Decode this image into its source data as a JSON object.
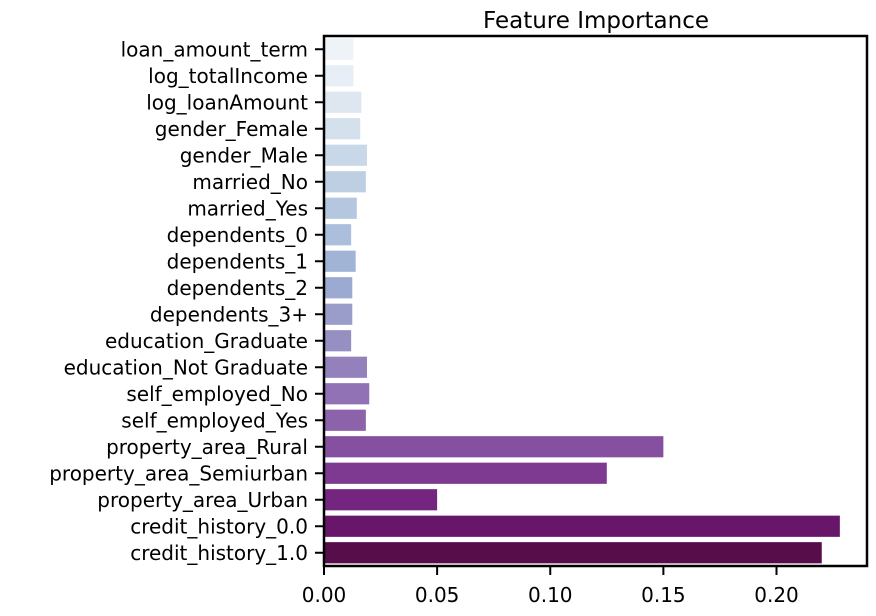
{
  "chart_data": {
    "type": "bar",
    "orientation": "horizontal",
    "title": "Feature Importance",
    "xlabel": "",
    "ylabel": "",
    "xlim": [
      0,
      0.24
    ],
    "x_ticks": [
      "0.00",
      "0.05",
      "0.10",
      "0.15",
      "0.20"
    ],
    "x_tick_values": [
      0,
      0.05,
      0.1,
      0.15,
      0.2
    ],
    "grid": false,
    "legend": "none",
    "palette": "BuPu",
    "categories": [
      "loan_amount_term",
      "log_totalIncome",
      "log_loanAmount",
      "gender_Female",
      "gender_Male",
      "married_No",
      "married_Yes",
      "dependents_0",
      "dependents_1",
      "dependents_2",
      "dependents_3+",
      "education_Graduate",
      "education_Not Graduate",
      "self_employed_No",
      "self_employed_Yes",
      "property_area_Rural",
      "property_area_Semiurban",
      "property_area_Urban",
      "credit_history_0.0",
      "credit_history_1.0"
    ],
    "values": [
      0.013,
      0.013,
      0.0165,
      0.016,
      0.019,
      0.0185,
      0.0145,
      0.012,
      0.014,
      0.0125,
      0.0125,
      0.012,
      0.019,
      0.02,
      0.0185,
      0.15,
      0.125,
      0.05,
      0.228,
      0.22
    ],
    "colors": [
      "#eef3f8",
      "#e7eef5",
      "#dee7f0",
      "#d4e0eb",
      "#c9d8e8",
      "#becfe3",
      "#b4c7df",
      "#abbfdc",
      "#a2b4d6",
      "#9ca9d0",
      "#9a9dc9",
      "#9690c2",
      "#9480bb",
      "#9172b4",
      "#8c62ab",
      "#8650a0",
      "#7e3a91",
      "#742580",
      "#671669",
      "#560d4a"
    ]
  }
}
